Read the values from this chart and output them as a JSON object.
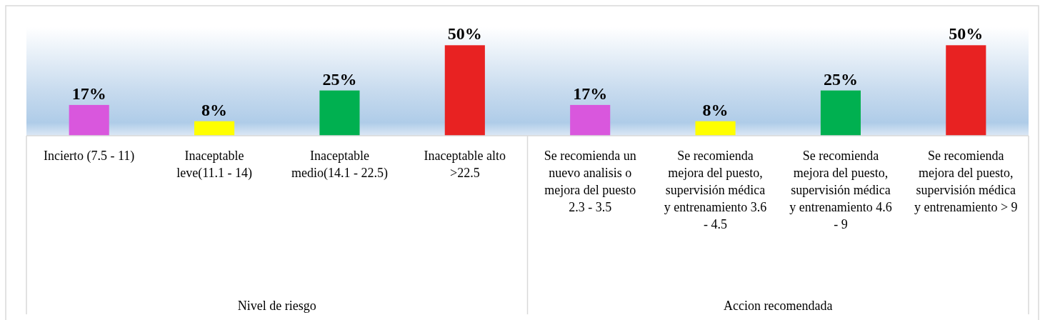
{
  "chart_data": {
    "type": "bar",
    "categories": [
      "Incierto (7.5 - 11)",
      "Inaceptable leve(11.1 - 14)",
      "Inaceptable medio(14.1 - 22.5)",
      "Inaceptable alto >22.5",
      "Se recomienda un nuevo analisis o mejora del puesto 2.3 - 3.5",
      "Se recomienda mejora del puesto, supervisión médica y entrenamiento 3.6 - 4.5",
      "Se recomienda mejora del puesto, supervisión médica y entrenamiento 4.6 - 9",
      "Se recomienda mejora del puesto, supervisión médica y entrenamiento > 9"
    ],
    "values": [
      17,
      8,
      25,
      50,
      17,
      8,
      25,
      50
    ],
    "colors": [
      "#d957dd",
      "#ffff00",
      "#00b050",
      "#e82222",
      "#d957dd",
      "#ffff00",
      "#00b050",
      "#e82222"
    ],
    "value_labels": [
      "17%",
      "8%",
      "25%",
      "50%",
      "17%",
      "8%",
      "25%",
      "50%"
    ],
    "ylim": [
      0,
      60
    ],
    "annotations": [
      "Nivel de riesgo",
      "Accion recomendada"
    ]
  }
}
